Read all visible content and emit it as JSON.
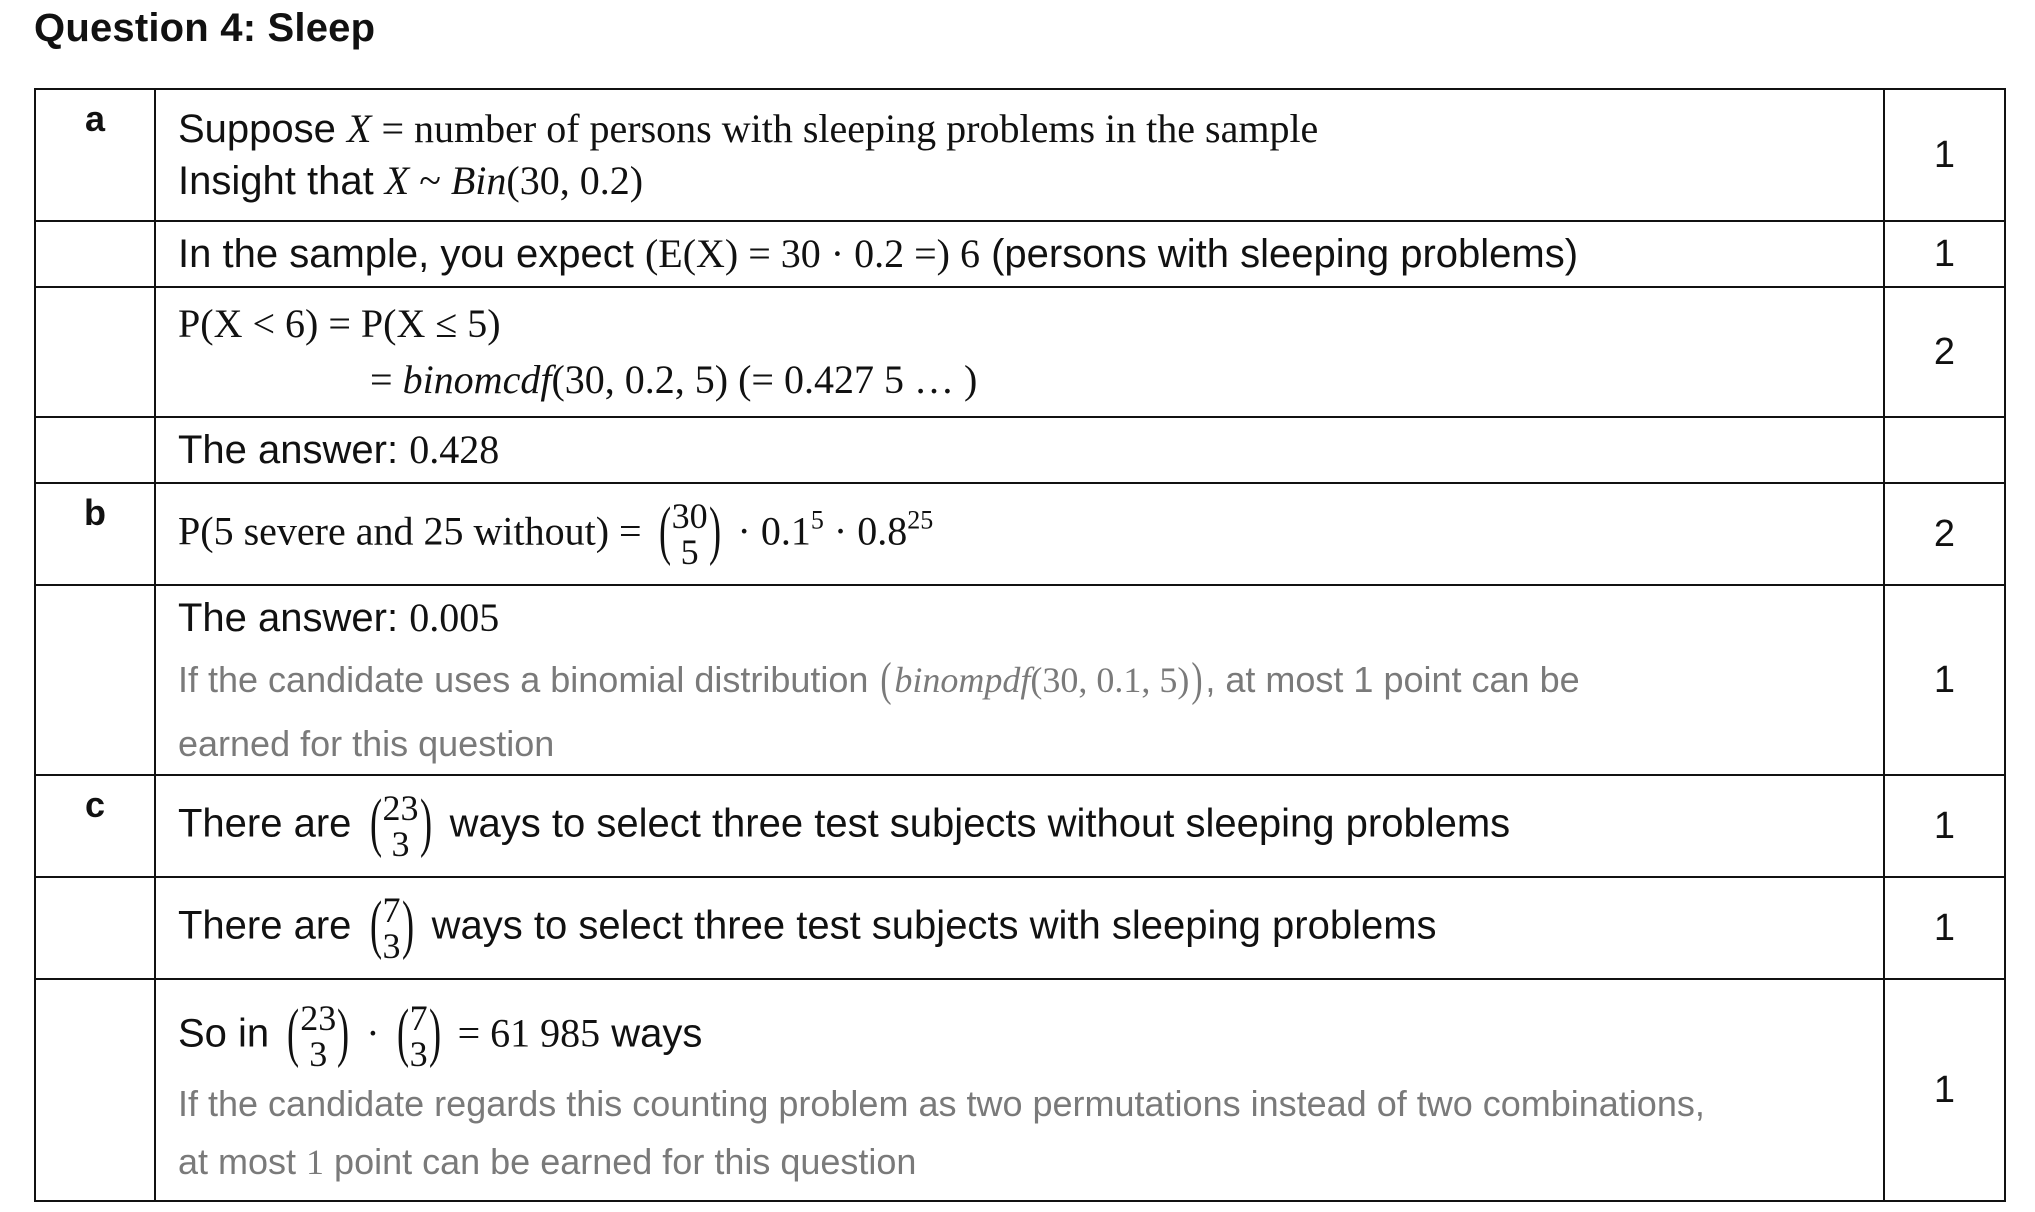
{
  "title": "Question 4: Sleep",
  "rows": [
    {
      "label": "a",
      "line1_prefix": "Suppose ",
      "line1_var": "X",
      "line1_suffix": " = number of persons with sleeping problems in the sample",
      "line2_prefix": "Insight that ",
      "line2_math_a": "X",
      "line2_math_b": " ~ ",
      "line2_math_c": "Bin",
      "line2_math_d": "(30, 0.2)",
      "points": "1"
    },
    {
      "label": "",
      "text_prefix": "In the sample, you expect ",
      "math": "(E(X) = 30 · 0.2 =) 6",
      "text_suffix": " (persons with sleeping problems)",
      "points": "1"
    },
    {
      "label": "",
      "line1_math": "P(X < 6) =  P(X ≤ 5)",
      "line2_eq": "= ",
      "line2_func": "binomcdf",
      "line2_args": "(30, 0.2, 5) (= 0.427 5 … )",
      "points": "2"
    },
    {
      "label": "",
      "answer_prefix": "The answer: ",
      "answer_value": "0.428",
      "points": ""
    },
    {
      "label": "b",
      "lhs": "P(5 severe and 25 without) = ",
      "binom_top": "30",
      "binom_bottom": "5",
      "term1": " · 0.1",
      "exp1": "5",
      "term2": " · 0.8",
      "exp2": "25",
      "points": "2"
    },
    {
      "label": "",
      "answer_prefix": "The answer: ",
      "answer_value": "0.005",
      "note_prefix": "If the candidate uses a binomial distribution ",
      "note_func": "binompdf",
      "note_args": "(30, 0.1, 5)",
      "note_suffix": ", at most 1 point can be",
      "note_line2": "earned for this question",
      "points": "1"
    },
    {
      "label": "c",
      "prefix": "There are ",
      "binom_top": "23",
      "binom_bottom": "3",
      "suffix": " ways to select three test subjects without sleeping problems",
      "points": "1"
    },
    {
      "label": "",
      "prefix": "There are ",
      "binom_top": "7",
      "binom_bottom": "3",
      "suffix": " ways to select three test subjects with sleeping problems",
      "points": "1"
    },
    {
      "label": "",
      "prefix": "So in ",
      "binom1_top": "23",
      "binom1_bottom": "3",
      "dot": " · ",
      "binom2_top": "7",
      "binom2_bottom": "3",
      "result_math": " = 61 985",
      "result_suffix": " ways",
      "note_line1": "If the candidate regards this counting problem as two permutations instead of two combinations,",
      "note_line2_prefix": "at most ",
      "note_line2_num": "1",
      "note_line2_suffix": " point can be earned for this question",
      "points": "1"
    }
  ]
}
